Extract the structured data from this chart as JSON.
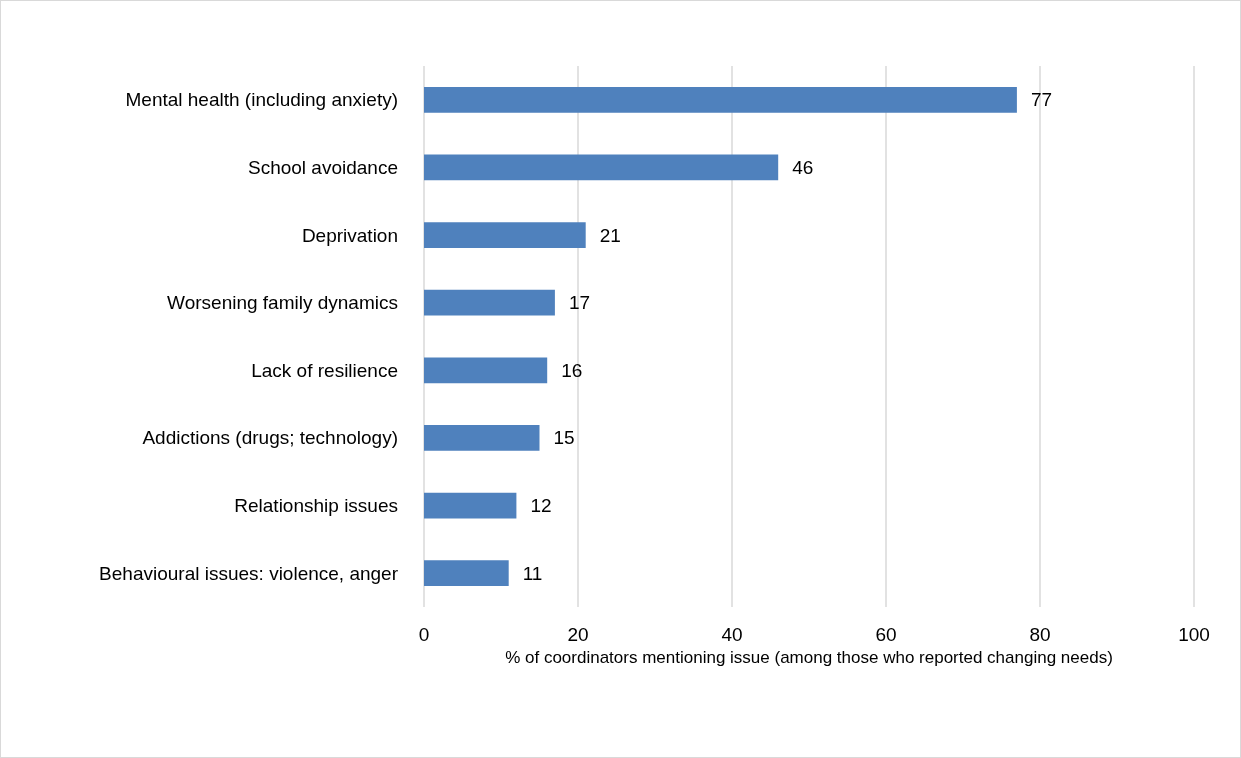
{
  "chart_data": {
    "type": "bar",
    "orientation": "horizontal",
    "categories": [
      "Mental health (including anxiety)",
      "School avoidance",
      "Deprivation",
      "Worsening family dynamics",
      "Lack of resilience",
      "Addictions (drugs; technology)",
      "Relationship issues",
      "Behavioural issues: violence, anger"
    ],
    "values": [
      77,
      46,
      21,
      17,
      16,
      15,
      12,
      11
    ],
    "color": "#4f81bd",
    "xlim": [
      0,
      100
    ],
    "xticks": [
      0,
      20,
      40,
      60,
      80,
      100
    ],
    "xlabel": "% of coordinators mentioning issue (among those who reported changing needs)",
    "grid": "x",
    "data_labels": true
  }
}
